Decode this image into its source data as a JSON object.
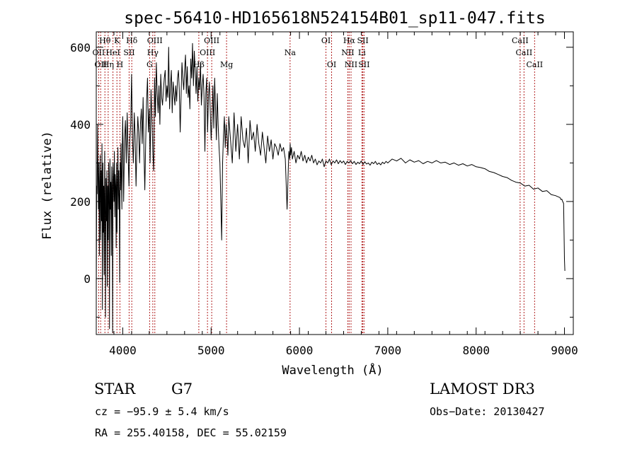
{
  "chart_data": {
    "type": "line",
    "title": "spec-56410-HD165618N524154B01_sp11-047.fits",
    "xlabel": "Wavelength (Å)",
    "ylabel": "Flux (relative)",
    "xlim": [
      3700,
      9100
    ],
    "ylim": [
      -145,
      640
    ],
    "x_ticks": [
      4000,
      5000,
      6000,
      7000,
      8000,
      9000
    ],
    "x_tick_labels": [
      "4000",
      "5000",
      "6000",
      "7000",
      "8000",
      "9000"
    ],
    "y_ticks": [
      0,
      200,
      400,
      600
    ],
    "y_tick_labels": [
      "0",
      "200",
      "400",
      "600"
    ],
    "grid": false,
    "line_color": "#000000",
    "marker_color": "#b22222",
    "spectral_lines": [
      {
        "wave": 3727,
        "label": "OII",
        "row": 1
      },
      {
        "wave": 3750,
        "label": "OII",
        "row": 2
      },
      {
        "wave": 3798,
        "label": "Hθ",
        "row": 0
      },
      {
        "wave": 3835,
        "label": "Hη",
        "row": 2
      },
      {
        "wave": 3889,
        "label": "HeI",
        "row": 1
      },
      {
        "wave": 3934,
        "label": "K",
        "row": 0
      },
      {
        "wave": 3968,
        "label": "H",
        "row": 2
      },
      {
        "wave": 4072,
        "label": "SII",
        "row": 1
      },
      {
        "wave": 4102,
        "label": "Hδ",
        "row": 0
      },
      {
        "wave": 4304,
        "label": "G",
        "row": 2
      },
      {
        "wave": 4340,
        "label": "Hγ",
        "row": 1
      },
      {
        "wave": 4363,
        "label": "OIII",
        "row": 0
      },
      {
        "wave": 4861,
        "label": "Hβ",
        "row": 2
      },
      {
        "wave": 4959,
        "label": "OIII",
        "row": 1
      },
      {
        "wave": 5007,
        "label": "OIII",
        "row": 0
      },
      {
        "wave": 5175,
        "label": "Mg",
        "row": 2
      },
      {
        "wave": 5894,
        "label": "Na",
        "row": 1
      },
      {
        "wave": 6300,
        "label": "OI",
        "row": 0
      },
      {
        "wave": 6364,
        "label": "OI",
        "row": 2
      },
      {
        "wave": 6548,
        "label": "NII",
        "row": 1
      },
      {
        "wave": 6563,
        "label": "Hα",
        "row": 0
      },
      {
        "wave": 6584,
        "label": "NII",
        "row": 2
      },
      {
        "wave": 6707,
        "label": "Li",
        "row": 1
      },
      {
        "wave": 6717,
        "label": "SII",
        "row": 0
      },
      {
        "wave": 6731,
        "label": "SII",
        "row": 2
      },
      {
        "wave": 8498,
        "label": "CaII",
        "row": 0
      },
      {
        "wave": 8542,
        "label": "CaII",
        "row": 1
      },
      {
        "wave": 8662,
        "label": "CaII",
        "row": 2
      }
    ],
    "series": [
      {
        "name": "flux",
        "x": [
          3700,
          3705,
          3710,
          3715,
          3720,
          3725,
          3730,
          3735,
          3740,
          3745,
          3750,
          3755,
          3760,
          3765,
          3770,
          3775,
          3780,
          3785,
          3790,
          3795,
          3800,
          3805,
          3810,
          3815,
          3820,
          3825,
          3830,
          3835,
          3840,
          3845,
          3850,
          3855,
          3860,
          3865,
          3870,
          3875,
          3880,
          3885,
          3890,
          3895,
          3900,
          3905,
          3910,
          3915,
          3920,
          3925,
          3930,
          3935,
          3940,
          3945,
          3950,
          3955,
          3960,
          3965,
          3970,
          3975,
          3980,
          3985,
          3990,
          3995,
          4000,
          4010,
          4020,
          4030,
          4040,
          4050,
          4060,
          4070,
          4080,
          4090,
          4100,
          4110,
          4120,
          4130,
          4140,
          4150,
          4160,
          4170,
          4180,
          4190,
          4200,
          4210,
          4220,
          4230,
          4240,
          4250,
          4260,
          4270,
          4280,
          4290,
          4300,
          4310,
          4320,
          4330,
          4340,
          4350,
          4360,
          4370,
          4380,
          4390,
          4400,
          4410,
          4420,
          4430,
          4440,
          4450,
          4460,
          4470,
          4480,
          4490,
          4500,
          4510,
          4520,
          4530,
          4540,
          4550,
          4560,
          4570,
          4580,
          4590,
          4600,
          4610,
          4620,
          4630,
          4640,
          4650,
          4660,
          4670,
          4680,
          4690,
          4700,
          4710,
          4720,
          4730,
          4740,
          4750,
          4760,
          4770,
          4780,
          4790,
          4800,
          4810,
          4820,
          4830,
          4840,
          4850,
          4860,
          4870,
          4880,
          4890,
          4900,
          4910,
          4920,
          4930,
          4940,
          4950,
          4960,
          4970,
          4980,
          4990,
          5000,
          5010,
          5020,
          5030,
          5040,
          5050,
          5060,
          5070,
          5080,
          5090,
          5100,
          5110,
          5120,
          5130,
          5140,
          5150,
          5160,
          5170,
          5180,
          5190,
          5200,
          5220,
          5240,
          5260,
          5280,
          5300,
          5320,
          5340,
          5360,
          5380,
          5400,
          5420,
          5440,
          5460,
          5480,
          5500,
          5520,
          5540,
          5560,
          5580,
          5600,
          5620,
          5640,
          5660,
          5680,
          5700,
          5720,
          5740,
          5760,
          5780,
          5800,
          5820,
          5840,
          5860,
          5880,
          5890,
          5895,
          5900,
          5910,
          5920,
          5940,
          5960,
          5980,
          6000,
          6020,
          6040,
          6060,
          6080,
          6100,
          6120,
          6140,
          6160,
          6180,
          6200,
          6220,
          6240,
          6260,
          6280,
          6300,
          6320,
          6340,
          6360,
          6380,
          6400,
          6420,
          6440,
          6460,
          6480,
          6500,
          6520,
          6540,
          6560,
          6580,
          6600,
          6620,
          6640,
          6660,
          6680,
          6700,
          6720,
          6740,
          6760,
          6780,
          6800,
          6820,
          6840,
          6860,
          6880,
          6900,
          6920,
          6940,
          6960,
          6980,
          7000,
          7050,
          7100,
          7150,
          7200,
          7250,
          7300,
          7350,
          7400,
          7450,
          7500,
          7550,
          7600,
          7650,
          7700,
          7750,
          7800,
          7850,
          7900,
          7950,
          8000,
          8050,
          8100,
          8150,
          8200,
          8250,
          8300,
          8350,
          8400,
          8450,
          8500,
          8550,
          8600,
          8650,
          8700,
          8750,
          8800,
          8850,
          8900,
          8950,
          8960,
          8970,
          8980,
          8990,
          9000,
          9005
        ],
        "y": [
          -40,
          240,
          220,
          400,
          260,
          180,
          300,
          60,
          250,
          320,
          100,
          280,
          150,
          350,
          -80,
          300,
          120,
          240,
          10,
          330,
          200,
          -100,
          260,
          150,
          280,
          -20,
          240,
          100,
          300,
          220,
          -130,
          310,
          180,
          250,
          60,
          290,
          240,
          -140,
          300,
          260,
          200,
          330,
          160,
          270,
          240,
          80,
          300,
          120,
          250,
          340,
          180,
          280,
          210,
          -10,
          300,
          230,
          350,
          260,
          180,
          340,
          420,
          200,
          360,
          410,
          300,
          430,
          330,
          240,
          360,
          400,
          530,
          360,
          300,
          430,
          370,
          240,
          340,
          420,
          380,
          300,
          400,
          440,
          350,
          470,
          330,
          230,
          360,
          460,
          520,
          380,
          440,
          300,
          490,
          420,
          330,
          280,
          520,
          420,
          560,
          480,
          430,
          500,
          400,
          530,
          470,
          450,
          490,
          520,
          540,
          460,
          500,
          470,
          600,
          440,
          500,
          540,
          430,
          510,
          480,
          450,
          500,
          460,
          520,
          540,
          490,
          380,
          470,
          560,
          520,
          490,
          540,
          580,
          480,
          550,
          470,
          500,
          440,
          570,
          520,
          610,
          500,
          590,
          540,
          480,
          550,
          460,
          520,
          490,
          560,
          450,
          500,
          530,
          470,
          330,
          480,
          520,
          380,
          470,
          510,
          440,
          360,
          410,
          500,
          390,
          520,
          440,
          360,
          480,
          400,
          340,
          300,
          200,
          100,
          300,
          370,
          420,
          340,
          400,
          370,
          320,
          420,
          360,
          300,
          430,
          330,
          400,
          310,
          420,
          360,
          340,
          390,
          300,
          410,
          360,
          380,
          330,
          400,
          350,
          320,
          380,
          340,
          300,
          370,
          330,
          360,
          310,
          350,
          340,
          320,
          350,
          330,
          340,
          310,
          180,
          330,
          310,
          350,
          320,
          340,
          310,
          330,
          300,
          320,
          310,
          330,
          305,
          320,
          300,
          315,
          305,
          320,
          300,
          310,
          295,
          305,
          300,
          310,
          290,
          305,
          300,
          310,
          295,
          305,
          300,
          308,
          298,
          306,
          300,
          305,
          296,
          304,
          300,
          306,
          298,
          304,
          296,
          302,
          298,
          305,
          296,
          303,
          297,
          300,
          294,
          302,
          298,
          304,
          296,
          300,
          295,
          302,
          298,
          304,
          300,
          310,
          305,
          312,
          300,
          308,
          302,
          306,
          298,
          304,
          300,
          306,
          300,
          302,
          296,
          300,
          294,
          298,
          292,
          296,
          290,
          288,
          285,
          278,
          275,
          270,
          265,
          262,
          255,
          250,
          248,
          240,
          242,
          232,
          235,
          226,
          228,
          218,
          215,
          210,
          205,
          206,
          200,
          195,
          50,
          20
        ]
      }
    ]
  },
  "info": {
    "object_class": "STAR",
    "subclass": "G7",
    "cz": "cz = −95.9 ± 5.4 km/s",
    "coords": "RA = 255.40158, DEC =  55.02159",
    "survey": "LAMOST DR3",
    "obs_date": "Obs−Date: 20130427"
  }
}
